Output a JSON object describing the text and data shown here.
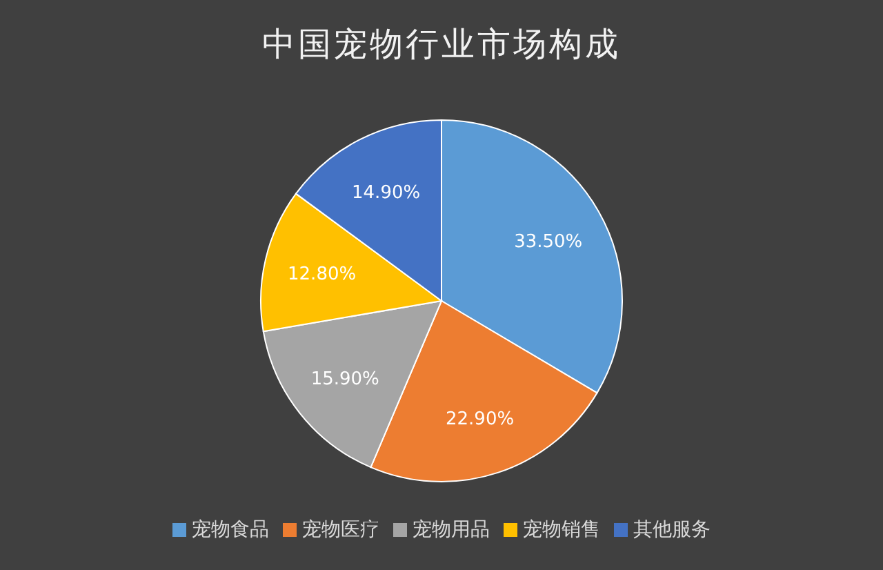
{
  "chart_data": {
    "type": "pie",
    "title": "中国宠物行业市场构成",
    "categories": [
      "宠物食品",
      "宠物医疗",
      "宠物用品",
      "宠物销售",
      "其他服务"
    ],
    "values": [
      33.5,
      22.9,
      15.9,
      12.8,
      14.9
    ],
    "value_labels": [
      "33.50%",
      "22.90%",
      "15.90%",
      "12.80%",
      "14.90%"
    ],
    "colors": [
      "#5b9bd5",
      "#ed7d31",
      "#a5a5a5",
      "#ffc000",
      "#4472c4"
    ],
    "legend": "bottom"
  }
}
